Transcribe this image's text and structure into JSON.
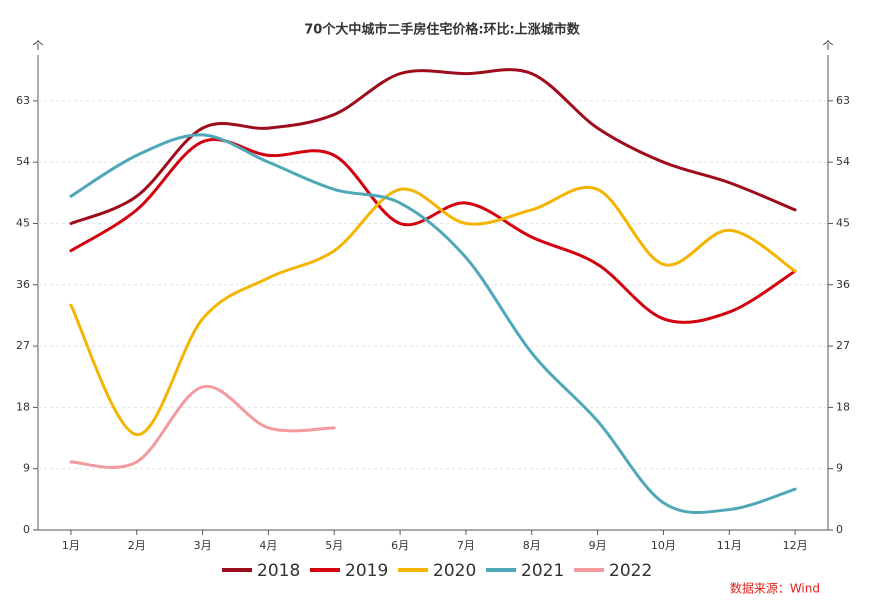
{
  "chart_data": {
    "type": "line",
    "title": "70个大中城市二手房住宅价格:环比:上涨城市数",
    "y_unit": "个",
    "source": "数据来源：Wind",
    "categories": [
      "1月",
      "2月",
      "3月",
      "4月",
      "5月",
      "6月",
      "7月",
      "8月",
      "9月",
      "10月",
      "11月",
      "12月"
    ],
    "series": [
      {
        "name": "2018",
        "color": "#9e0b1a",
        "values": [
          45,
          49,
          59,
          59,
          61,
          67,
          67,
          67,
          59,
          54,
          51,
          47
        ]
      },
      {
        "name": "2019",
        "color": "#d4000f",
        "values": [
          41,
          47,
          57,
          55,
          55,
          45,
          48,
          43,
          39,
          31,
          32,
          38
        ]
      },
      {
        "name": "2020",
        "color": "#f5b400",
        "values": [
          33,
          14,
          31,
          37,
          41,
          50,
          45,
          47,
          50,
          39,
          44,
          38
        ]
      },
      {
        "name": "2021",
        "color": "#4fa8b8",
        "values": [
          49,
          55,
          58,
          54,
          50,
          48,
          40,
          26,
          16,
          4,
          3,
          6
        ]
      },
      {
        "name": "2022",
        "color": "#f29a9e",
        "values": [
          10,
          10,
          21,
          15,
          15,
          null,
          null,
          null,
          null,
          null,
          null,
          null
        ]
      }
    ],
    "ylim": [
      0,
      69
    ],
    "yticks": [
      0,
      9,
      18,
      27,
      36,
      45,
      54,
      63
    ],
    "grid": true,
    "legend": "bottom"
  }
}
